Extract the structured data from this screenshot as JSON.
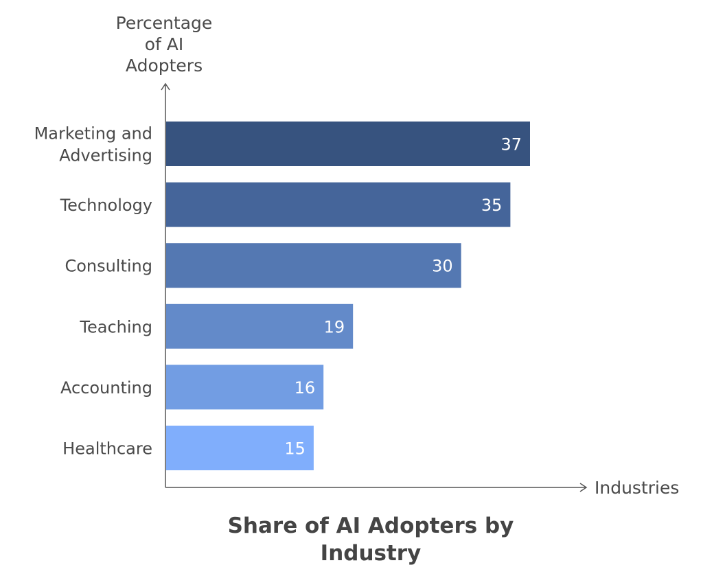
{
  "chart_data": {
    "type": "bar",
    "orientation": "horizontal",
    "title_lines": [
      "Share of AI Adopters by",
      "Industry"
    ],
    "title": "Share of AI Adopters by Industry",
    "ylabel_lines": [
      "Percentage",
      "of AI",
      "Adopters"
    ],
    "ylabel": "Percentage of AI Adopters",
    "xlabel": "Industries",
    "categories": [
      {
        "label_lines": [
          "Marketing and",
          "Advertising"
        ],
        "label": "Marketing and Advertising",
        "value": 37,
        "color": "#37537f"
      },
      {
        "label_lines": [
          "Technology"
        ],
        "label": "Technology",
        "value": 35,
        "color": "#45659a"
      },
      {
        "label_lines": [
          "Consulting"
        ],
        "label": "Consulting",
        "value": 30,
        "color": "#5478b2"
      },
      {
        "label_lines": [
          "Teaching"
        ],
        "label": "Teaching",
        "value": 19,
        "color": "#638ac9"
      },
      {
        "label_lines": [
          "Accounting"
        ],
        "label": "Accounting",
        "value": 16,
        "color": "#729de3"
      },
      {
        "label_lines": [
          "Healthcare"
        ],
        "label": "Healthcare",
        "value": 15,
        "color": "#80aefc"
      }
    ],
    "xlim": [
      0,
      37
    ],
    "grid": false,
    "legend": "none"
  }
}
